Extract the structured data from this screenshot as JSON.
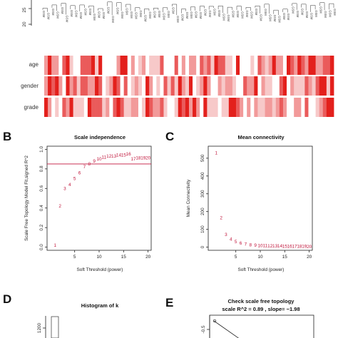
{
  "panels": {
    "B": {
      "letter": "B"
    },
    "C": {
      "letter": "C"
    },
    "D": {
      "letter": "D"
    },
    "E": {
      "letter": "E"
    }
  },
  "dendrogram": {
    "y_ticks": [
      "20",
      "25"
    ],
    "leaf_label": "GSM"
  },
  "heatmap": {
    "rows": [
      "age",
      "gender",
      "grade"
    ],
    "colors": [
      "#ffffff",
      "#f7c9c9",
      "#f29a9a",
      "#ea5b5b",
      "#e3201c"
    ]
  },
  "chart_data": [
    {
      "id": "scale-independence",
      "type": "scatter",
      "title": "Scale independence",
      "xlabel": "Soft Threshold (power)",
      "ylabel": "Scale Free Topology Model Fit,signed R^2",
      "xlim": [
        0,
        20
      ],
      "ylim": [
        0,
        1
      ],
      "x_ticks": [
        5,
        10,
        15,
        20
      ],
      "y_ticks": [
        0.0,
        0.2,
        0.4,
        0.6,
        0.8,
        1.0
      ],
      "y_tick_labels": [
        "0.0",
        "0.2",
        "0.4",
        "0.6",
        "0.8",
        "1.0"
      ],
      "hline": 0.85,
      "point_color": "#c0153b",
      "points": [
        {
          "x": 1,
          "y": 0.02,
          "label": "1"
        },
        {
          "x": 2,
          "y": 0.42,
          "label": "2"
        },
        {
          "x": 3,
          "y": 0.6,
          "label": "3"
        },
        {
          "x": 4,
          "y": 0.64,
          "label": "4"
        },
        {
          "x": 5,
          "y": 0.7,
          "label": "5"
        },
        {
          "x": 6,
          "y": 0.76,
          "label": "6"
        },
        {
          "x": 7,
          "y": 0.82,
          "label": "7"
        },
        {
          "x": 8,
          "y": 0.85,
          "label": "8"
        },
        {
          "x": 9,
          "y": 0.88,
          "label": "9"
        },
        {
          "x": 10,
          "y": 0.9,
          "label": "10"
        },
        {
          "x": 11,
          "y": 0.92,
          "label": "11"
        },
        {
          "x": 12,
          "y": 0.93,
          "label": "12"
        },
        {
          "x": 13,
          "y": 0.93,
          "label": "13"
        },
        {
          "x": 14,
          "y": 0.94,
          "label": "14"
        },
        {
          "x": 15,
          "y": 0.94,
          "label": "15"
        },
        {
          "x": 16,
          "y": 0.95,
          "label": "16"
        },
        {
          "x": 17,
          "y": 0.9,
          "label": "17"
        },
        {
          "x": 18,
          "y": 0.91,
          "label": "18"
        },
        {
          "x": 19,
          "y": 0.91,
          "label": "19"
        },
        {
          "x": 20,
          "y": 0.91,
          "label": "20"
        }
      ]
    },
    {
      "id": "mean-connectivity",
      "type": "scatter",
      "title": "Mean connectivity",
      "xlabel": "Soft Threshold (power)",
      "ylabel": "Mean Connectivity",
      "xlim": [
        0,
        20
      ],
      "ylim": [
        0,
        550
      ],
      "x_ticks": [
        5,
        10,
        15,
        20
      ],
      "y_ticks": [
        0,
        100,
        200,
        300,
        400,
        500
      ],
      "y_tick_labels": [
        "0",
        "100",
        "200",
        "300",
        "400",
        "500"
      ],
      "point_color": "#c0153b",
      "points": [
        {
          "x": 1,
          "y": 530,
          "label": "1"
        },
        {
          "x": 2,
          "y": 165,
          "label": "2"
        },
        {
          "x": 3,
          "y": 70,
          "label": "3"
        },
        {
          "x": 4,
          "y": 45,
          "label": "4"
        },
        {
          "x": 5,
          "y": 30,
          "label": "5"
        },
        {
          "x": 6,
          "y": 22,
          "label": "6"
        },
        {
          "x": 7,
          "y": 17,
          "label": "7"
        },
        {
          "x": 8,
          "y": 13,
          "label": "8"
        },
        {
          "x": 9,
          "y": 11,
          "label": "9"
        },
        {
          "x": 10,
          "y": 9,
          "label": "10"
        },
        {
          "x": 11,
          "y": 8,
          "label": "11"
        },
        {
          "x": 12,
          "y": 7,
          "label": "12"
        },
        {
          "x": 13,
          "y": 6,
          "label": "13"
        },
        {
          "x": 14,
          "y": 6,
          "label": "14"
        },
        {
          "x": 15,
          "y": 5,
          "label": "15"
        },
        {
          "x": 16,
          "y": 5,
          "label": "16"
        },
        {
          "x": 17,
          "y": 4,
          "label": "17"
        },
        {
          "x": 18,
          "y": 4,
          "label": "18"
        },
        {
          "x": 19,
          "y": 4,
          "label": "19"
        },
        {
          "x": 20,
          "y": 3,
          "label": "20"
        }
      ]
    },
    {
      "id": "histogram-of-k",
      "type": "bar",
      "title": "Histogram of k",
      "y_tick_labels": [
        "1200",
        "1000"
      ]
    },
    {
      "id": "check-scale-free",
      "type": "scatter",
      "title": "Check scale free topology",
      "subtitle": "scale R^2 = 0.89 , slope= −1.98",
      "y_tick_labels": [
        "-0.5",
        "-1.0"
      ]
    }
  ]
}
